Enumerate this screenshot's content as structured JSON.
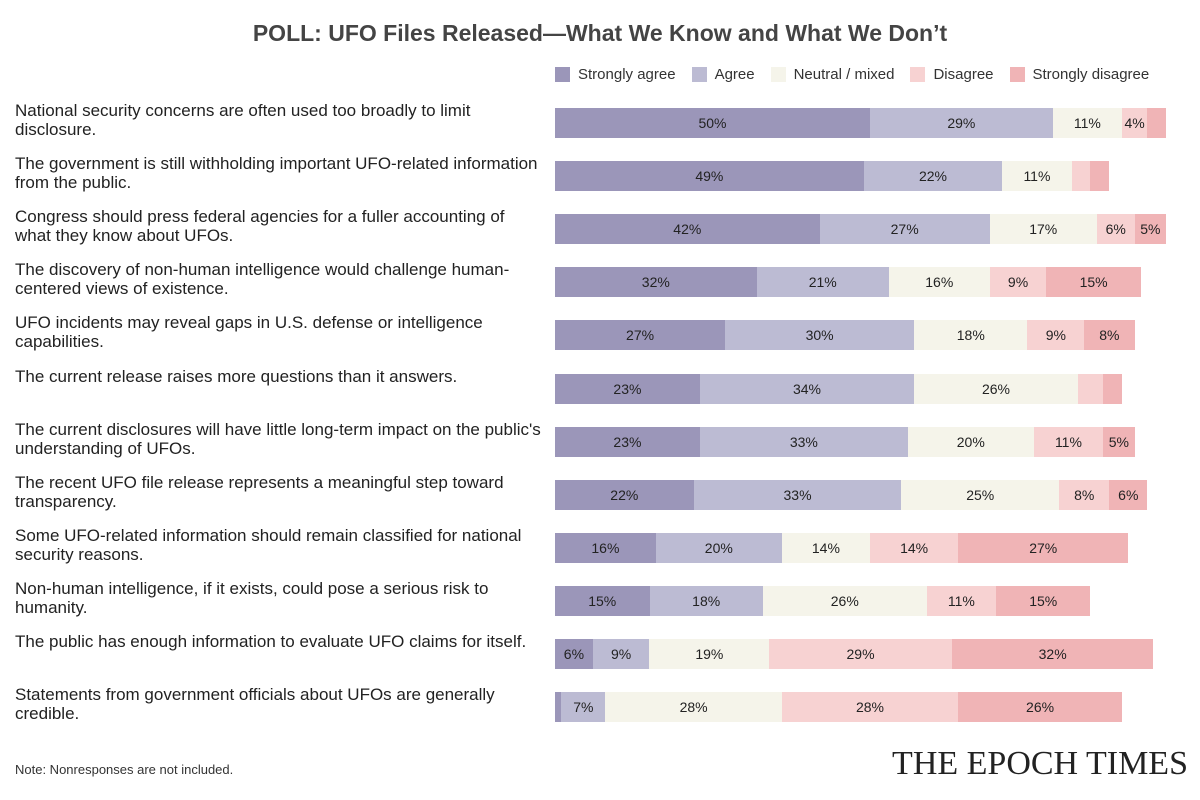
{
  "title": "POLL: UFO Files Released—What We Know and What We Don’t",
  "note": "Note: Nonresponses are not included.",
  "brand": "THE EPOCH TIMES",
  "colors": {
    "strongly_agree": "#9b96b9",
    "agree": "#bcbbd3",
    "neutral": "#f5f4ea",
    "disagree": "#f7d2d2",
    "strongly_disagree": "#f0b4b6"
  },
  "chart_data": {
    "type": "bar",
    "orientation": "horizontal",
    "stacked": true,
    "series_names": [
      "Strongly agree",
      "Agree",
      "Neutral / mixed",
      "Disagree",
      "Strongly disagree"
    ],
    "categories": [
      "National security concerns are often used too broadly to limit disclosure.",
      "The government is still withholding important UFO-related information from the public.",
      "Congress should press federal agencies for a fuller accounting of what they know about UFOs.",
      "The discovery of non-human intelligence would challenge human-centered views of existence.",
      "UFO incidents may reveal gaps in U.S. defense or intelligence capabilities.",
      "The current release raises more questions than it answers.",
      "The current disclosures will have little long-term impact on the public's understanding of UFOs.",
      "The recent UFO file release represents a meaningful step toward transparency.",
      "Some UFO-related information should remain classified for national security reasons.",
      "Non-human intelligence, if it exists, could pose a serious risk to humanity.",
      "The public has enough information to evaluate UFO claims for itself.",
      "Statements from government officials about UFOs are generally credible."
    ],
    "values": [
      [
        50,
        29,
        11,
        4,
        3
      ],
      [
        49,
        22,
        11,
        3,
        3
      ],
      [
        42,
        27,
        17,
        6,
        5
      ],
      [
        32,
        21,
        16,
        9,
        15
      ],
      [
        27,
        30,
        18,
        9,
        8
      ],
      [
        23,
        34,
        26,
        4,
        3
      ],
      [
        23,
        33,
        20,
        11,
        5
      ],
      [
        22,
        33,
        25,
        8,
        6
      ],
      [
        16,
        20,
        14,
        14,
        27
      ],
      [
        15,
        18,
        26,
        11,
        15
      ],
      [
        6,
        9,
        19,
        29,
        32
      ],
      [
        1,
        7,
        28,
        28,
        26
      ]
    ],
    "labels": [
      [
        "50%",
        "29%",
        "11%",
        "4%",
        ""
      ],
      [
        "49%",
        "22%",
        "11%",
        "",
        ""
      ],
      [
        "42%",
        "27%",
        "17%",
        "6%",
        "5%"
      ],
      [
        "32%",
        "21%",
        "16%",
        "9%",
        "15%"
      ],
      [
        "27%",
        "30%",
        "18%",
        "9%",
        "8%"
      ],
      [
        "23%",
        "34%",
        "26%",
        "",
        ""
      ],
      [
        "23%",
        "33%",
        "20%",
        "11%",
        "5%"
      ],
      [
        "22%",
        "33%",
        "25%",
        "8%",
        "6%"
      ],
      [
        "16%",
        "20%",
        "14%",
        "14%",
        "27%"
      ],
      [
        "15%",
        "18%",
        "26%",
        "11%",
        "15%"
      ],
      [
        "6%",
        "9%",
        "19%",
        "29%",
        "32%"
      ],
      [
        "",
        "7%",
        "28%",
        "28%",
        "26%"
      ]
    ],
    "xlim": [
      0,
      100
    ]
  }
}
